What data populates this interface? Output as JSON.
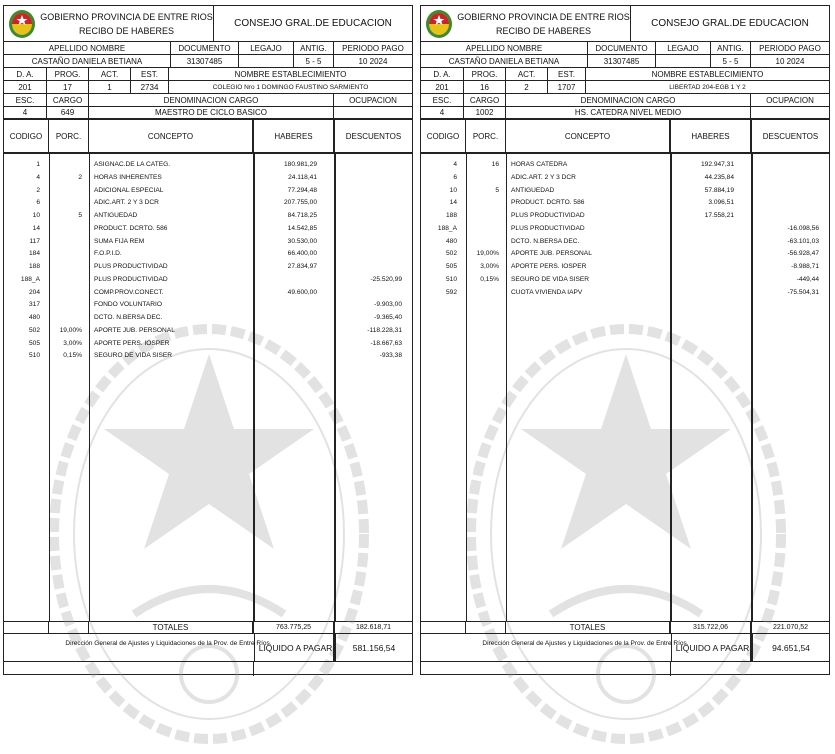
{
  "colors": {
    "border": "#222222",
    "watermark": "#9a9a9a",
    "logo_red": "#c8252b",
    "logo_green": "#3f8a2e",
    "logo_yellow": "#e6c21a"
  },
  "labels": {
    "gov": "GOBIERNO PROVINCIA DE ENTRE RIOS",
    "recibo": "RECIBO DE HABERES",
    "consejo": "CONSEJO GRAL.DE EDUCACION",
    "apellido": "APELLIDO NOMBRE",
    "documento": "DOCUMENTO",
    "legajo": "LEGAJO",
    "antig": "ANTIG.",
    "periodo": "PERIODO PAGO",
    "da": "D. A.",
    "prog": "PROG.",
    "act": "ACT.",
    "est": "EST.",
    "nombre_est": "NOMBRE ESTABLECIMIENTO",
    "esc": "ESC.",
    "cargo": "CARGO",
    "denominacion": "DENOMINACION CARGO",
    "ocupacion": "OCUPACION",
    "codigo": "CODIGO",
    "porc": "PORC.",
    "concepto": "CONCEPTO",
    "haberes": "HABERES",
    "descuentos": "DESCUENTOS",
    "totales": "TOTALES",
    "direccion": "Dirección General de Ajustes y Liquidaciones de la Prov. de Entre Ríos.",
    "liquido": "LIQUIDO A PAGAR"
  },
  "receipts": [
    {
      "nombre": "CASTAÑO DANIELA BETIANA",
      "documento": "31307485",
      "legajo": "",
      "antig": "5 - 5",
      "periodo": "10  2024",
      "da": "201",
      "prog": "17",
      "act": "1",
      "est": "2734",
      "establecimiento": "COLEGIO Nro 1 DOMINGO FAUSTINO SARMIENTO",
      "esc": "4",
      "cargo": "649",
      "denominacion": "MAESTRO DE CICLO BASICO",
      "ocupacion": "",
      "items": [
        {
          "codigo": "1",
          "porc": "",
          "concepto": "ASIGNAC.DE LA CATEG.",
          "haberes": "180.981,29",
          "descuentos": ""
        },
        {
          "codigo": "4",
          "porc": "2",
          "concepto": "HORAS INHERENTES",
          "haberes": "24.118,41",
          "descuentos": ""
        },
        {
          "codigo": "2",
          "porc": "",
          "concepto": "ADICIONAL ESPECIAL",
          "haberes": "77.294,48",
          "descuentos": ""
        },
        {
          "codigo": "6",
          "porc": "",
          "concepto": "ADIC.ART. 2 Y 3 DCR",
          "haberes": "207.755,00",
          "descuentos": ""
        },
        {
          "codigo": "10",
          "porc": "5",
          "concepto": "ANTIGUEDAD",
          "haberes": "84.718,25",
          "descuentos": ""
        },
        {
          "codigo": "14",
          "porc": "",
          "concepto": "PRODUCT. DCRTO. 586",
          "haberes": "14.542,85",
          "descuentos": ""
        },
        {
          "codigo": "117",
          "porc": "",
          "concepto": "SUMA FIJA REM",
          "haberes": "30.530,00",
          "descuentos": ""
        },
        {
          "codigo": "184",
          "porc": "",
          "concepto": "F.O.P.I.D.",
          "haberes": "66.400,00",
          "descuentos": ""
        },
        {
          "codigo": "188",
          "porc": "",
          "concepto": "PLUS PRODUCTIVIDAD",
          "haberes": "27.834,97",
          "descuentos": ""
        },
        {
          "codigo": "188_A",
          "porc": "",
          "concepto": "PLUS PRODUCTIVIDAD",
          "haberes": "",
          "descuentos": "-25.520,99"
        },
        {
          "codigo": "204",
          "porc": "",
          "concepto": "COMP.PROV.CONECT.",
          "haberes": "49.600,00",
          "descuentos": ""
        },
        {
          "codigo": "317",
          "porc": "",
          "concepto": "FONDO VOLUNTARIO",
          "haberes": "",
          "descuentos": "-9.903,00"
        },
        {
          "codigo": "480",
          "porc": "",
          "concepto": "DCTO. N.BERSA DEC.",
          "haberes": "",
          "descuentos": "-9.365,40"
        },
        {
          "codigo": "502",
          "porc": "19,00%",
          "concepto": "APORTE JUB. PERSONAL",
          "haberes": "",
          "descuentos": "-118.228,31"
        },
        {
          "codigo": "505",
          "porc": "3,00%",
          "concepto": "APORTE PERS. IOSPER",
          "haberes": "",
          "descuentos": "-18.667,63"
        },
        {
          "codigo": "510",
          "porc": "0,15%",
          "concepto": "SEGURO DE VIDA SISER",
          "haberes": "",
          "descuentos": "-933,38"
        }
      ],
      "total_haberes": "763.775,25",
      "total_descuentos": "182.618,71",
      "liquido": "581.156,54"
    },
    {
      "nombre": "CASTAÑO DANIELA BETIANA",
      "documento": "31307485",
      "legajo": "",
      "antig": "5 - 5",
      "periodo": "10  2024",
      "da": "201",
      "prog": "16",
      "act": "2",
      "est": "1707",
      "establecimiento": "LIBERTAD 204-EGB 1 Y 2",
      "esc": "4",
      "cargo": "1002",
      "denominacion": "HS. CATEDRA NIVEL MEDIO",
      "ocupacion": "",
      "items": [
        {
          "codigo": "4",
          "porc": "16",
          "concepto": "HORAS CATEDRA",
          "haberes": "192.947,31",
          "descuentos": ""
        },
        {
          "codigo": "6",
          "porc": "",
          "concepto": "ADIC.ART. 2 Y 3 DCR",
          "haberes": "44.235,84",
          "descuentos": ""
        },
        {
          "codigo": "10",
          "porc": "5",
          "concepto": "ANTIGUEDAD",
          "haberes": "57.884,19",
          "descuentos": ""
        },
        {
          "codigo": "14",
          "porc": "",
          "concepto": "PRODUCT. DCRTO. 586",
          "haberes": "3.096,51",
          "descuentos": ""
        },
        {
          "codigo": "188",
          "porc": "",
          "concepto": "PLUS PRODUCTIVIDAD",
          "haberes": "17.558,21",
          "descuentos": ""
        },
        {
          "codigo": "188_A",
          "porc": "",
          "concepto": "PLUS PRODUCTIVIDAD",
          "haberes": "",
          "descuentos": "-16.098,56"
        },
        {
          "codigo": "480",
          "porc": "",
          "concepto": "DCTO. N.BERSA DEC.",
          "haberes": "",
          "descuentos": "-63.101,03"
        },
        {
          "codigo": "502",
          "porc": "19,00%",
          "concepto": "APORTE JUB. PERSONAL",
          "haberes": "",
          "descuentos": "-56.928,47"
        },
        {
          "codigo": "505",
          "porc": "3,00%",
          "concepto": "APORTE PERS. IOSPER",
          "haberes": "",
          "descuentos": "-8.988,71"
        },
        {
          "codigo": "510",
          "porc": "0,15%",
          "concepto": "SEGURO DE VIDA SISER",
          "haberes": "",
          "descuentos": "-449,44"
        },
        {
          "codigo": "592",
          "porc": "",
          "concepto": "CUOTA VIVIENDA IAPV",
          "haberes": "",
          "descuentos": "-75.504,31"
        }
      ],
      "total_haberes": "315.722,06",
      "total_descuentos": "221.070,52",
      "liquido": "94.651,54"
    }
  ]
}
